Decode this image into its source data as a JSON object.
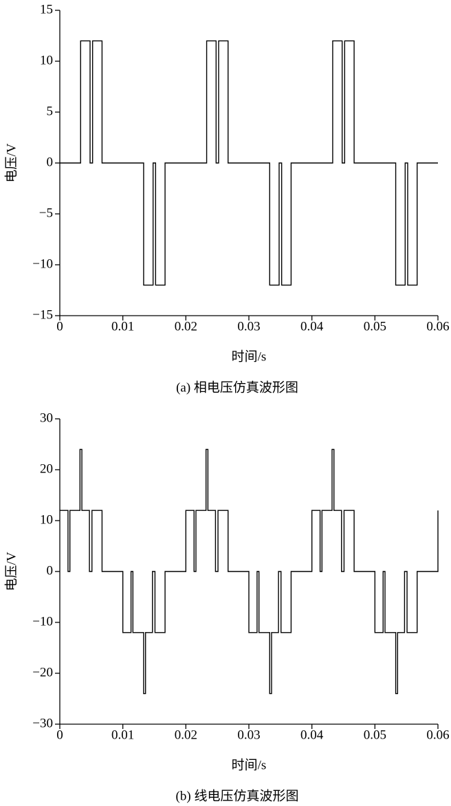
{
  "chart_data": [
    {
      "type": "line",
      "caption": "(a) 相电压仿真波形图",
      "xlabel": "时间/s",
      "ylabel": "电压/V",
      "color": "#000000",
      "x": [
        0,
        0.0033,
        0.0033,
        0.0048,
        0.0048,
        0.0052,
        0.0052,
        0.0067,
        0.0067,
        0.0133,
        0.0133,
        0.0148,
        0.0148,
        0.0152,
        0.0152,
        0.0167,
        0.0167,
        0.0233,
        0.0233,
        0.0248,
        0.0248,
        0.0252,
        0.0252,
        0.0267,
        0.0267,
        0.0333,
        0.0333,
        0.0348,
        0.0348,
        0.0352,
        0.0352,
        0.0367,
        0.0367,
        0.0433,
        0.0433,
        0.0448,
        0.0448,
        0.0452,
        0.0452,
        0.0467,
        0.0467,
        0.0533,
        0.0533,
        0.0548,
        0.0548,
        0.0552,
        0.0552,
        0.0567,
        0.0567,
        0.06
      ],
      "values": [
        0,
        0,
        12,
        12,
        0,
        0,
        12,
        12,
        0,
        0,
        -12,
        -12,
        0,
        0,
        -12,
        -12,
        0,
        0,
        12,
        12,
        0,
        0,
        12,
        12,
        0,
        0,
        -12,
        -12,
        0,
        0,
        -12,
        -12,
        0,
        0,
        12,
        12,
        0,
        0,
        12,
        12,
        0,
        0,
        -12,
        -12,
        0,
        0,
        -12,
        -12,
        0,
        0
      ],
      "xlim": [
        0,
        0.06
      ],
      "xticks": [
        0,
        0.01,
        0.02,
        0.03,
        0.04,
        0.05,
        0.06
      ],
      "ylim": [
        -15,
        15
      ],
      "yticks": [
        {
          "value": -15,
          "label": "−15"
        },
        {
          "value": -10,
          "label": "−10"
        },
        {
          "value": -5,
          "label": "−5"
        },
        0,
        5,
        10,
        15
      ]
    },
    {
      "type": "line",
      "caption": "(b) 线电压仿真波形图",
      "xlabel": "时间/s",
      "ylabel": "电压/V",
      "color": "#000000",
      "x": [
        0,
        0.0013,
        0.0013,
        0.0016,
        0.0016,
        0.0032,
        0.0032,
        0.0035,
        0.0035,
        0.0047,
        0.0047,
        0.0051,
        0.0051,
        0.0067,
        0.0067,
        0.01,
        0.01,
        0.0113,
        0.0113,
        0.0116,
        0.0116,
        0.0133,
        0.0133,
        0.0136,
        0.0136,
        0.0147,
        0.0147,
        0.0151,
        0.0151,
        0.0167,
        0.0167,
        0.02,
        0.02,
        0.0213,
        0.0213,
        0.0216,
        0.0216,
        0.0232,
        0.0232,
        0.0235,
        0.0235,
        0.0247,
        0.0247,
        0.0251,
        0.0251,
        0.0267,
        0.0267,
        0.03,
        0.03,
        0.0313,
        0.0313,
        0.0316,
        0.0316,
        0.0333,
        0.0333,
        0.0336,
        0.0336,
        0.0347,
        0.0347,
        0.0351,
        0.0351,
        0.0367,
        0.0367,
        0.04,
        0.04,
        0.0413,
        0.0413,
        0.0416,
        0.0416,
        0.0432,
        0.0432,
        0.0435,
        0.0435,
        0.0447,
        0.0447,
        0.0451,
        0.0451,
        0.0467,
        0.0467,
        0.05,
        0.05,
        0.0513,
        0.0513,
        0.0516,
        0.0516,
        0.0533,
        0.0533,
        0.0536,
        0.0536,
        0.0547,
        0.0547,
        0.0551,
        0.0551,
        0.0567,
        0.0567,
        0.06,
        0.06
      ],
      "values": [
        12,
        12,
        0,
        0,
        12,
        12,
        24,
        24,
        12,
        12,
        0,
        0,
        12,
        12,
        0,
        0,
        -12,
        -12,
        0,
        0,
        -12,
        -12,
        -24,
        -24,
        -12,
        -12,
        0,
        0,
        -12,
        -12,
        0,
        0,
        12,
        12,
        0,
        0,
        12,
        12,
        24,
        24,
        12,
        12,
        0,
        0,
        12,
        12,
        0,
        0,
        -12,
        -12,
        0,
        0,
        -12,
        -12,
        -24,
        -24,
        -12,
        -12,
        0,
        0,
        -12,
        -12,
        0,
        0,
        12,
        12,
        0,
        0,
        12,
        12,
        24,
        24,
        12,
        12,
        0,
        0,
        12,
        12,
        0,
        0,
        -12,
        -12,
        0,
        0,
        -12,
        -12,
        -24,
        -24,
        -12,
        -12,
        0,
        0,
        -12,
        -12,
        0,
        0,
        12
      ],
      "xlim": [
        0,
        0.06
      ],
      "xticks": [
        0,
        0.01,
        0.02,
        0.03,
        0.04,
        0.05,
        0.06
      ],
      "ylim": [
        -30,
        30
      ],
      "yticks": [
        {
          "value": -30,
          "label": "−30"
        },
        {
          "value": -20,
          "label": "−20"
        },
        {
          "value": -10,
          "label": "−10"
        },
        0,
        10,
        20,
        30
      ]
    }
  ]
}
